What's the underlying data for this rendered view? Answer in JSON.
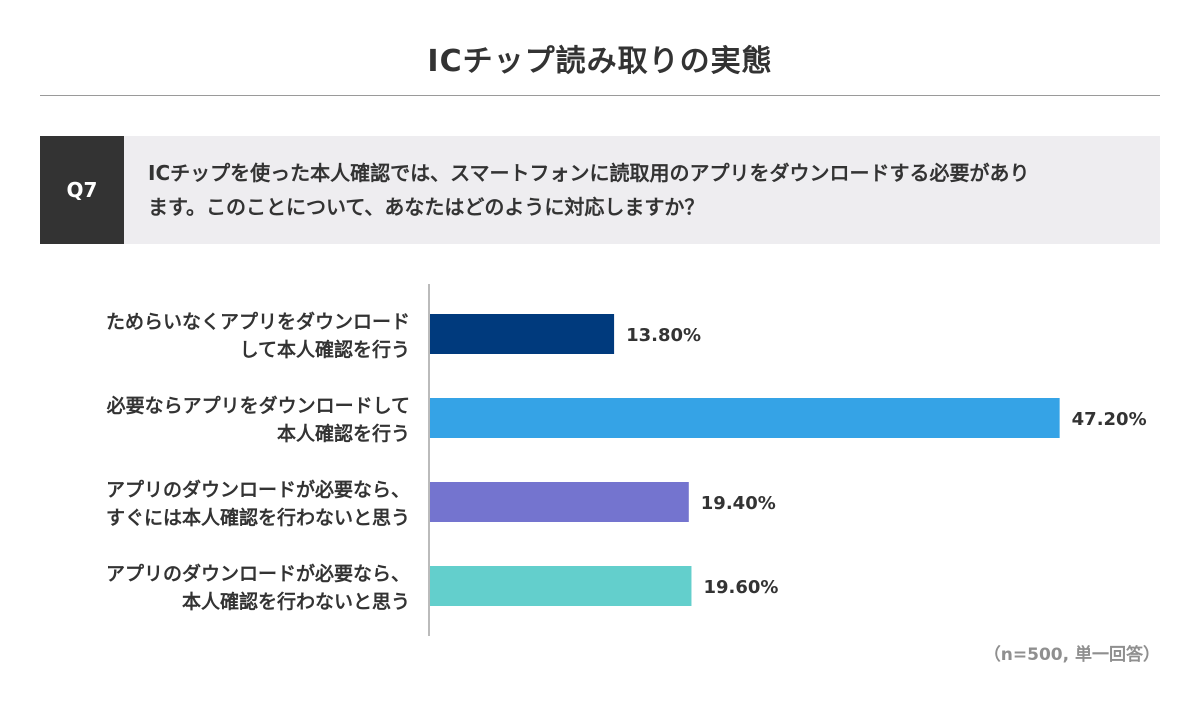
{
  "title": "ICチップ読み取りの実態",
  "question": {
    "label": "Q7",
    "line1": "ICチップを使った本人確認では、スマートフォンに読取用のアプリをダウンロードする必要があり",
    "line2": "ます。このことについて、あなたはどのように対応しますか？"
  },
  "note": "（n=500, 単一回答）",
  "colors": {
    "bar1": "#003a7d",
    "bar2": "#35a3e6",
    "bar3": "#7474cf",
    "bar4": "#63cfcc",
    "axis": "#777777"
  },
  "chart_data": {
    "type": "bar",
    "orientation": "horizontal",
    "categories": [
      [
        "ためらいなくアプリをダウンロード",
        "して本人確認を行う"
      ],
      [
        "必要ならアプリをダウンロードして",
        "本人確認を行う"
      ],
      [
        "アプリのダウンロードが必要なら、",
        "すぐには本人確認を行わないと思う"
      ],
      [
        "アプリのダウンロードが必要なら、",
        "本人確認を行わないと思う"
      ]
    ],
    "values": [
      13.8,
      47.2,
      19.4,
      19.6
    ],
    "value_labels": [
      "13.80%",
      "47.20%",
      "19.40%",
      "19.60%"
    ],
    "xlim": [
      0,
      50
    ],
    "grid": false,
    "legend": "none"
  }
}
